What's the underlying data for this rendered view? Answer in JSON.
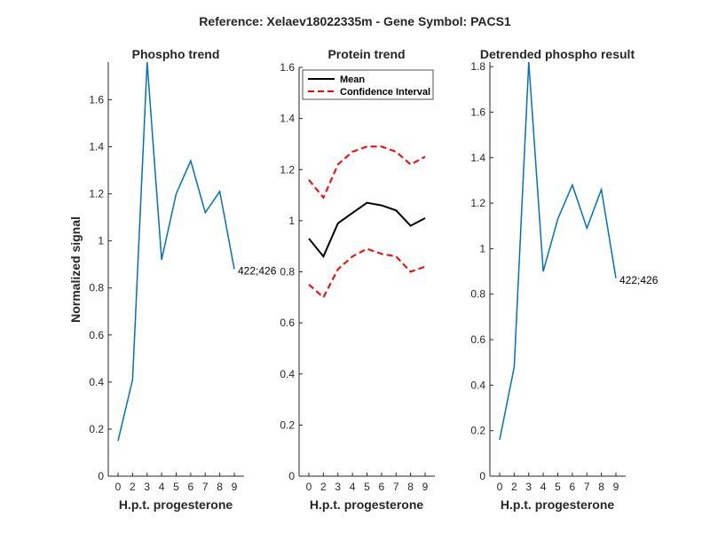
{
  "title": "Reference:  Xelaev18022335m - Gene Symbol:  PACS1",
  "colors": {
    "phospho": "#0072bd",
    "mean": "#000000",
    "ci": "#ff0000",
    "axis": "#262626"
  },
  "chart_data": [
    {
      "type": "line",
      "title": "Phospho trend",
      "xlabel": "H.p.t. progesterone",
      "ylabel": "Normalized signal",
      "categories": [
        "0",
        "2",
        "3",
        "4",
        "5",
        "6",
        "7",
        "8",
        "9"
      ],
      "x": [
        0,
        1,
        2,
        3,
        4,
        5,
        6,
        7,
        8
      ],
      "ylim": [
        0,
        1.76
      ],
      "yticks": [
        0,
        0.2,
        0.4,
        0.6,
        0.8,
        1,
        1.2,
        1.4,
        1.6
      ],
      "ytick_labels": [
        "0",
        "0.2",
        "0.4",
        "0.6",
        "0.8",
        "1",
        "1.2",
        "1.4",
        "1.6"
      ],
      "series": [
        {
          "name": "422;426",
          "values": [
            0.15,
            0.41,
            1.76,
            0.92,
            1.2,
            1.34,
            1.12,
            1.21,
            0.88
          ]
        }
      ],
      "annotation": "422;426"
    },
    {
      "type": "line",
      "title": "Protein trend",
      "xlabel": "H.p.t. progesterone",
      "ylabel": "",
      "categories": [
        "0",
        "2",
        "3",
        "4",
        "5",
        "6",
        "7",
        "8",
        "9"
      ],
      "x": [
        0,
        1,
        2,
        3,
        4,
        5,
        6,
        7,
        8
      ],
      "ylim": [
        0,
        1.6
      ],
      "yticks": [
        0,
        0.2,
        0.4,
        0.6,
        0.8,
        1,
        1.2,
        1.4,
        1.6
      ],
      "ytick_labels": [
        "0",
        "0.2",
        "0.4",
        "0.6",
        "0.8",
        "1",
        "1.2",
        "1.4",
        "1.6"
      ],
      "series": [
        {
          "name": "Mean",
          "values": [
            0.93,
            0.86,
            0.99,
            1.03,
            1.07,
            1.06,
            1.04,
            0.98,
            1.01
          ]
        },
        {
          "name": "Confidence Interval",
          "values": [
            1.16,
            1.09,
            1.22,
            1.27,
            1.29,
            1.29,
            1.27,
            1.22,
            1.25
          ]
        },
        {
          "name": "Confidence Interval (lower)",
          "values": [
            0.75,
            0.7,
            0.81,
            0.86,
            0.89,
            0.87,
            0.86,
            0.8,
            0.82
          ]
        }
      ],
      "legend": {
        "entries": [
          "Mean",
          "Confidence Interval"
        ],
        "position": "top-right"
      }
    },
    {
      "type": "line",
      "title": "Detrended phospho result",
      "xlabel": "H.p.t. progesterone",
      "ylabel": "",
      "categories": [
        "0",
        "2",
        "3",
        "4",
        "5",
        "6",
        "7",
        "8",
        "9"
      ],
      "x": [
        0,
        1,
        2,
        3,
        4,
        5,
        6,
        7,
        8
      ],
      "ylim": [
        0,
        1.82
      ],
      "yticks": [
        0,
        0.2,
        0.4,
        0.6,
        0.8,
        1,
        1.2,
        1.4,
        1.6,
        1.8
      ],
      "ytick_labels": [
        "0",
        "0.2",
        "0.4",
        "0.6",
        "0.8",
        "1",
        "1.2",
        "1.4",
        "1.6",
        "1.8"
      ],
      "series": [
        {
          "name": "422;426",
          "values": [
            0.16,
            0.48,
            1.82,
            0.9,
            1.13,
            1.28,
            1.09,
            1.26,
            0.87
          ]
        }
      ],
      "annotation": "422;426"
    }
  ]
}
